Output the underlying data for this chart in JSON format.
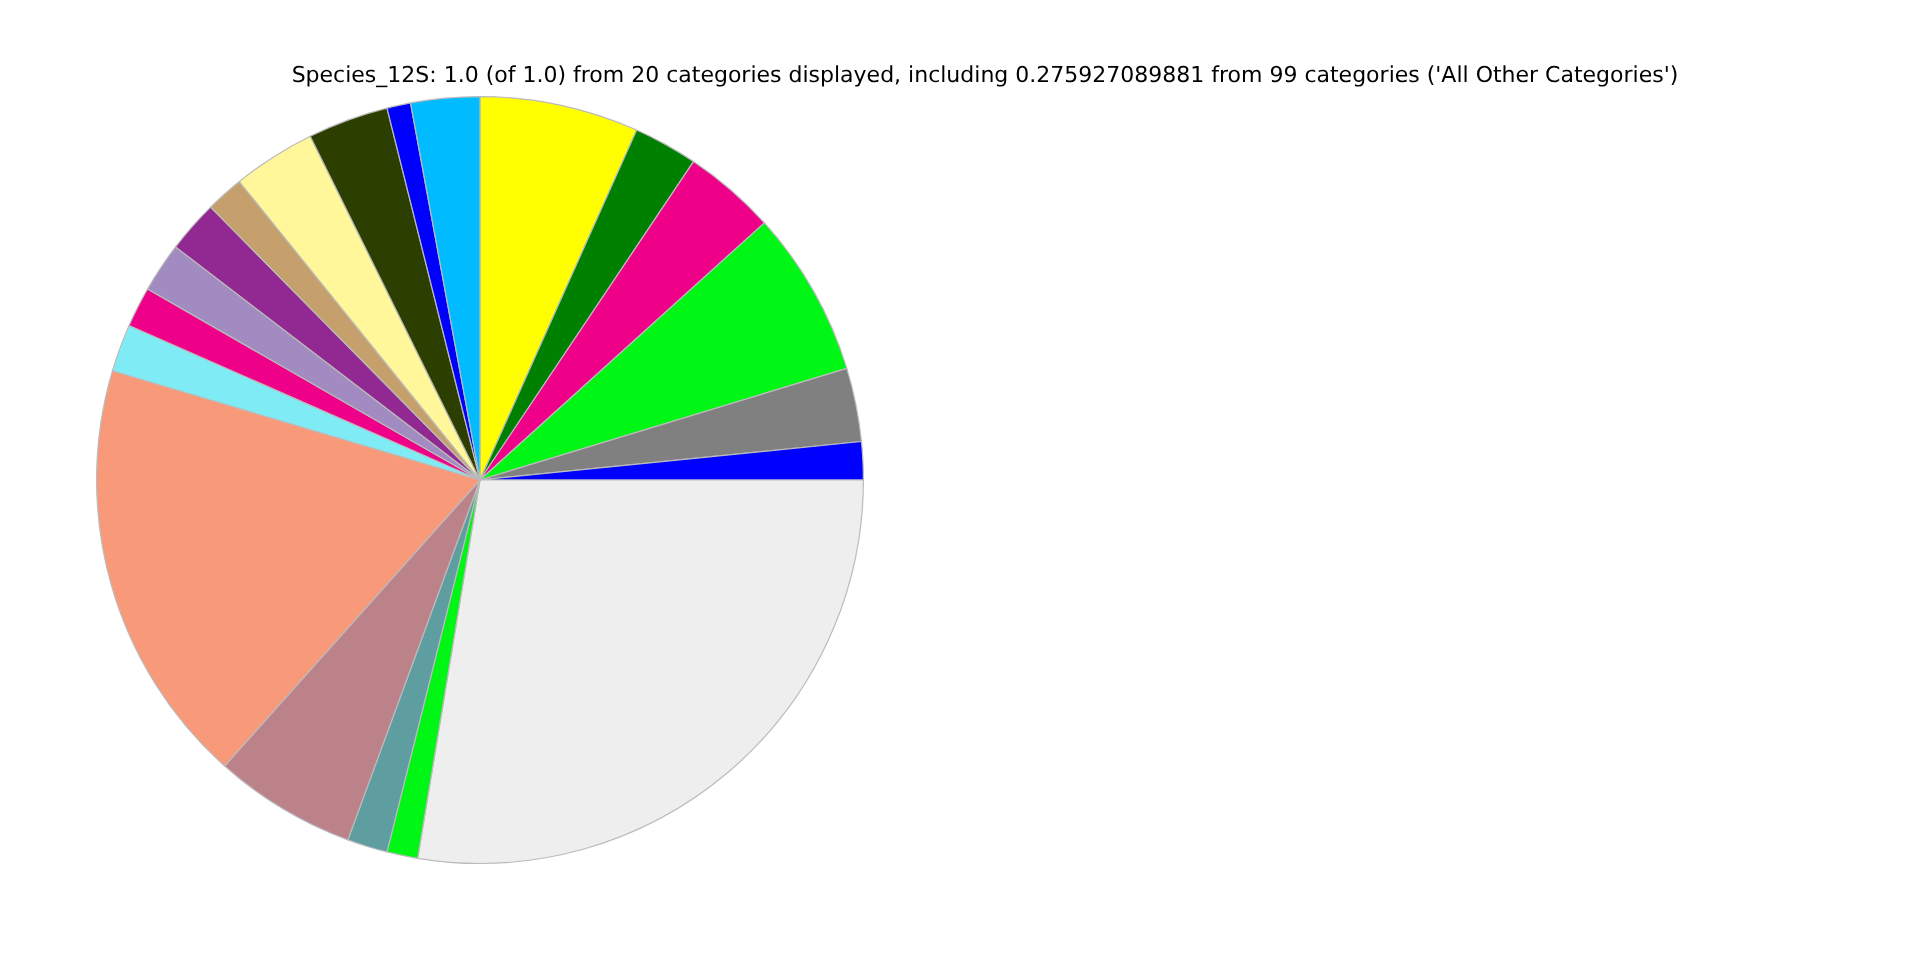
{
  "chart_data": {
    "type": "pie",
    "title": "Species_12S: 1.0 (of 1.0) from 20 categories displayed, including 0.275927089881 from 99 categories ('All Other Categories')",
    "categories": [
      null,
      null,
      null,
      null,
      null,
      null,
      null,
      null,
      null,
      null,
      null,
      null,
      null,
      null,
      null,
      null,
      null,
      null,
      null,
      null
    ],
    "values": [
      6.7,
      2.7,
      3.9,
      7.0,
      3.1,
      1.6,
      27.6,
      1.3,
      1.7,
      6.0,
      18.0,
      2.0,
      1.7,
      2.1,
      2.2,
      1.6,
      3.5,
      3.4,
      1.0,
      2.9
    ],
    "colors": [
      "#ffff00",
      "#008000",
      "#ee0088",
      "#00f614",
      "#808080",
      "#0000ff",
      "#eeeeee",
      "#00f614",
      "#5f9ea0",
      "#bc8289",
      "#f8997a",
      "#7fecf5",
      "#ee0088",
      "#a28bc1",
      "#922891",
      "#c5a06c",
      "#fff799",
      "#2c3f00",
      "#0000ff",
      "#00bbff"
    ],
    "legend": false
  }
}
